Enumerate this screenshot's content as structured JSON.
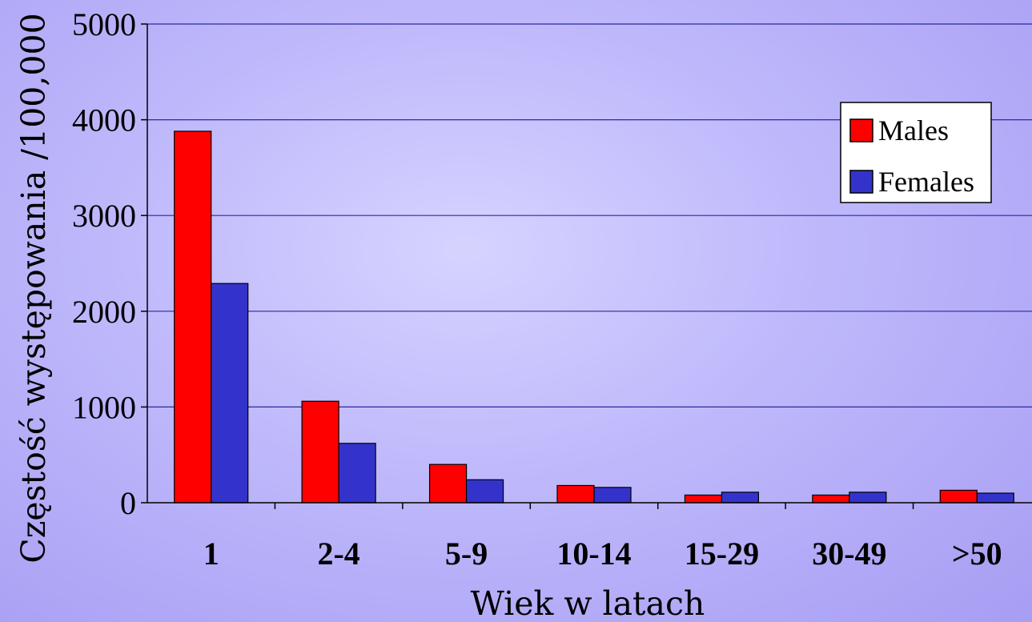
{
  "chart_data": {
    "type": "bar",
    "categories": [
      "1",
      "2-4",
      "5-9",
      "10-14",
      "15-29",
      "30-49",
      ">50"
    ],
    "series": [
      {
        "name": "Males",
        "color": "#ff0000",
        "values": [
          3880,
          1060,
          400,
          180,
          80,
          80,
          130
        ]
      },
      {
        "name": "Females",
        "color": "#3333cc",
        "values": [
          2290,
          620,
          240,
          160,
          110,
          110,
          100
        ]
      }
    ],
    "yticks": [
      "0",
      "1000",
      "2000",
      "3000",
      "4000",
      "5000"
    ],
    "ylim": [
      0,
      5000
    ],
    "xlabel": "Wiek w latach",
    "ylabel": "Częstość występowania /100,000",
    "grid": true,
    "legend_position": "top-right"
  }
}
